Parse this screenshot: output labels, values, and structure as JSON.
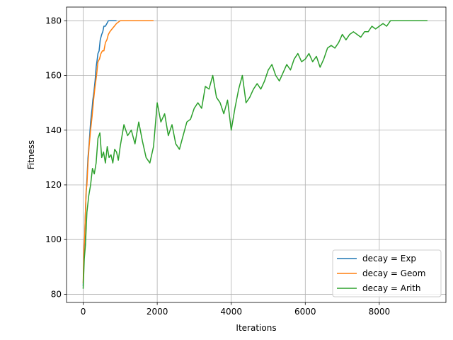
{
  "chart_data": {
    "type": "line",
    "title": "",
    "xlabel": "Iterations",
    "ylabel": "Fitness",
    "xlim": [
      -450,
      9800
    ],
    "ylim": [
      77,
      185
    ],
    "xticks": [
      0,
      2000,
      4000,
      6000,
      8000
    ],
    "yticks": [
      80,
      100,
      120,
      140,
      160,
      180
    ],
    "grid": true,
    "legend_position": "lower-right",
    "series": [
      {
        "name": "decay = Exp",
        "color": "#1f77b4",
        "x": [
          0,
          20,
          40,
          60,
          80,
          100,
          130,
          160,
          200,
          240,
          260,
          290,
          320,
          350,
          380,
          400,
          430,
          460,
          500,
          530,
          560,
          600,
          640,
          680,
          720,
          780,
          860,
          900
        ],
        "y": [
          83,
          95,
          100,
          110,
          117,
          122,
          130,
          135,
          143,
          148,
          151,
          154,
          158,
          163,
          166,
          168,
          169,
          173,
          175,
          176,
          178,
          178,
          179,
          180,
          180,
          180,
          180,
          180
        ]
      },
      {
        "name": "decay = Geom",
        "color": "#ff7f0e",
        "x": [
          0,
          20,
          40,
          60,
          80,
          100,
          130,
          160,
          200,
          240,
          280,
          320,
          360,
          400,
          440,
          480,
          520,
          560,
          600,
          640,
          680,
          720,
          780,
          840,
          900,
          1000,
          1200,
          1400,
          1600,
          1800,
          1900
        ],
        "y": [
          84,
          96,
          101,
          110,
          118,
          120,
          128,
          134,
          140,
          145,
          151,
          156,
          160,
          165,
          166,
          168,
          169,
          169,
          172,
          173,
          175,
          176,
          177,
          178,
          179,
          180,
          180,
          180,
          180,
          180,
          180
        ]
      },
      {
        "name": "decay = Arith",
        "color": "#2ca02c",
        "x": [
          0,
          30,
          60,
          100,
          150,
          200,
          250,
          300,
          350,
          400,
          450,
          500,
          550,
          600,
          650,
          700,
          750,
          800,
          850,
          900,
          950,
          1000,
          1100,
          1200,
          1300,
          1400,
          1500,
          1600,
          1700,
          1800,
          1900,
          2000,
          2100,
          2200,
          2300,
          2400,
          2500,
          2600,
          2700,
          2800,
          2900,
          3000,
          3100,
          3200,
          3300,
          3400,
          3500,
          3600,
          3700,
          3800,
          3900,
          4000,
          4100,
          4200,
          4300,
          4400,
          4500,
          4600,
          4700,
          4800,
          4900,
          5000,
          5100,
          5200,
          5300,
          5400,
          5500,
          5600,
          5700,
          5800,
          5900,
          6000,
          6100,
          6200,
          6300,
          6400,
          6500,
          6600,
          6700,
          6800,
          6900,
          7000,
          7100,
          7200,
          7300,
          7400,
          7500,
          7600,
          7700,
          7800,
          7900,
          8000,
          8100,
          8200,
          8300,
          8400,
          8600,
          8800,
          9000,
          9200,
          9300
        ],
        "y": [
          82,
          93,
          98,
          110,
          116,
          120,
          126,
          124,
          128,
          137,
          139,
          130,
          132,
          128,
          134,
          130,
          131,
          128,
          133,
          132,
          129,
          134,
          142,
          138,
          140,
          135,
          143,
          136,
          130,
          128,
          134,
          150,
          143,
          146,
          138,
          142,
          135,
          133,
          138,
          143,
          144,
          148,
          150,
          148,
          156,
          155,
          160,
          152,
          150,
          146,
          151,
          140,
          148,
          155,
          160,
          150,
          152,
          155,
          157,
          155,
          158,
          162,
          164,
          160,
          158,
          161,
          164,
          162,
          166,
          168,
          165,
          166,
          168,
          165,
          167,
          163,
          166,
          170,
          171,
          170,
          172,
          175,
          173,
          175,
          176,
          175,
          174,
          176,
          176,
          178,
          177,
          178,
          179,
          178,
          180,
          180,
          180,
          180,
          180,
          180,
          180
        ]
      }
    ]
  }
}
